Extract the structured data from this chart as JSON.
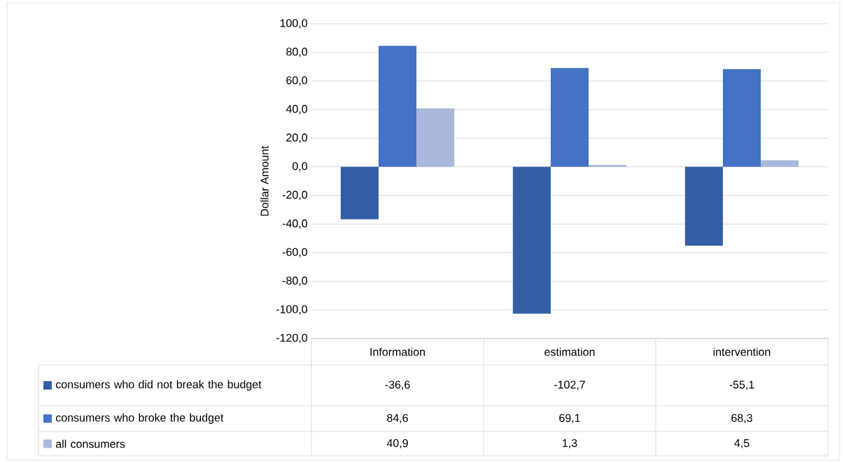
{
  "chart_data": {
    "type": "bar",
    "ylabel": "Dollar Amount",
    "categories": [
      "Information",
      "estimation",
      "intervention"
    ],
    "series": [
      {
        "name": "consumers who did not break the budget",
        "color": "#335ea6",
        "values": [
          -36.6,
          -102.7,
          -55.1
        ],
        "value_labels": [
          "-36,6",
          "-102,7",
          "-55,1"
        ]
      },
      {
        "name": "consumers who broke the budget",
        "color": "#4472c4",
        "values": [
          84.6,
          69.1,
          68.3
        ],
        "value_labels": [
          "84,6",
          "69,1",
          "68,3"
        ]
      },
      {
        "name": "all consumers",
        "color": "#a9b7dc",
        "values": [
          40.9,
          1.3,
          4.5
        ],
        "value_labels": [
          "40,9",
          "1,3",
          "4,5"
        ]
      }
    ],
    "ylim": [
      -120,
      100
    ],
    "yticks": [
      {
        "value": -120,
        "label": "-120,0"
      },
      {
        "value": -100,
        "label": "-100,0"
      },
      {
        "value": -80,
        "label": "-80,0"
      },
      {
        "value": -60,
        "label": "-60,0"
      },
      {
        "value": -40,
        "label": "-40,0"
      },
      {
        "value": -20,
        "label": "-20,0"
      },
      {
        "value": 0,
        "label": "0,0"
      },
      {
        "value": 20,
        "label": "20,0"
      },
      {
        "value": 40,
        "label": "40,0"
      },
      {
        "value": 60,
        "label": "60,0"
      },
      {
        "value": 80,
        "label": "80,0"
      },
      {
        "value": 100,
        "label": "100,0"
      }
    ],
    "grid": "y",
    "legend": "bottom"
  }
}
